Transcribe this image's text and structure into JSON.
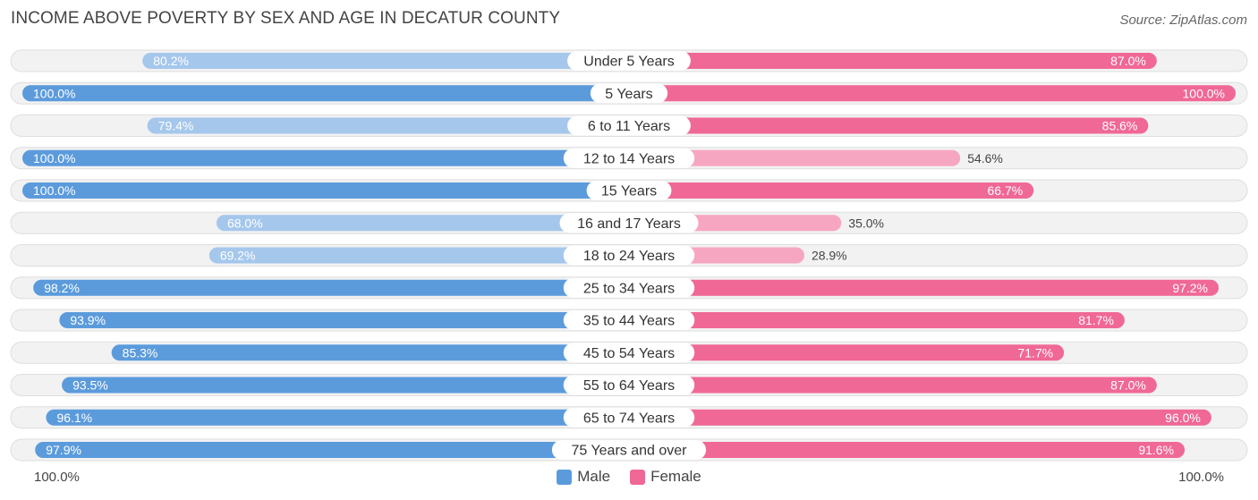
{
  "chart_data": {
    "type": "bar",
    "orientation": "diverging-horizontal",
    "title": "INCOME ABOVE POVERTY BY SEX AND AGE IN DECATUR COUNTY",
    "source": "Source: ZipAtlas.com",
    "categories": [
      "Under 5 Years",
      "5 Years",
      "6 to 11 Years",
      "12 to 14 Years",
      "15 Years",
      "16 and 17 Years",
      "18 to 24 Years",
      "25 to 34 Years",
      "35 to 44 Years",
      "45 to 54 Years",
      "55 to 64 Years",
      "65 to 74 Years",
      "75 Years and over"
    ],
    "series": [
      {
        "name": "Male",
        "values": [
          80.2,
          100.0,
          79.4,
          100.0,
          100.0,
          68.0,
          69.2,
          98.2,
          93.9,
          85.3,
          93.5,
          96.1,
          97.9
        ]
      },
      {
        "name": "Female",
        "values": [
          87.0,
          100.0,
          85.6,
          54.6,
          66.7,
          35.0,
          28.9,
          97.2,
          81.7,
          71.7,
          87.0,
          96.0,
          91.6
        ]
      }
    ],
    "value_labels": {
      "male": [
        "80.2%",
        "100.0%",
        "79.4%",
        "100.0%",
        "100.0%",
        "68.0%",
        "69.2%",
        "98.2%",
        "93.9%",
        "85.3%",
        "93.5%",
        "96.1%",
        "97.9%"
      ],
      "female": [
        "87.0%",
        "100.0%",
        "85.6%",
        "54.6%",
        "66.7%",
        "35.0%",
        "28.9%",
        "97.2%",
        "81.7%",
        "71.7%",
        "87.0%",
        "96.0%",
        "91.6%"
      ]
    },
    "axis_left_label": "100.0%",
    "axis_right_label": "100.0%",
    "xlim": [
      0,
      100
    ],
    "legend": [
      "Male",
      "Female"
    ],
    "legend_position": "bottom-center",
    "colors": {
      "male_strong": "#5b9bdc",
      "male_light": "#a5c7ec",
      "female_strong": "#f06895",
      "female_light": "#f7a6c1",
      "row_bg": "#f2f2f2",
      "row_border": "#dedede"
    }
  }
}
